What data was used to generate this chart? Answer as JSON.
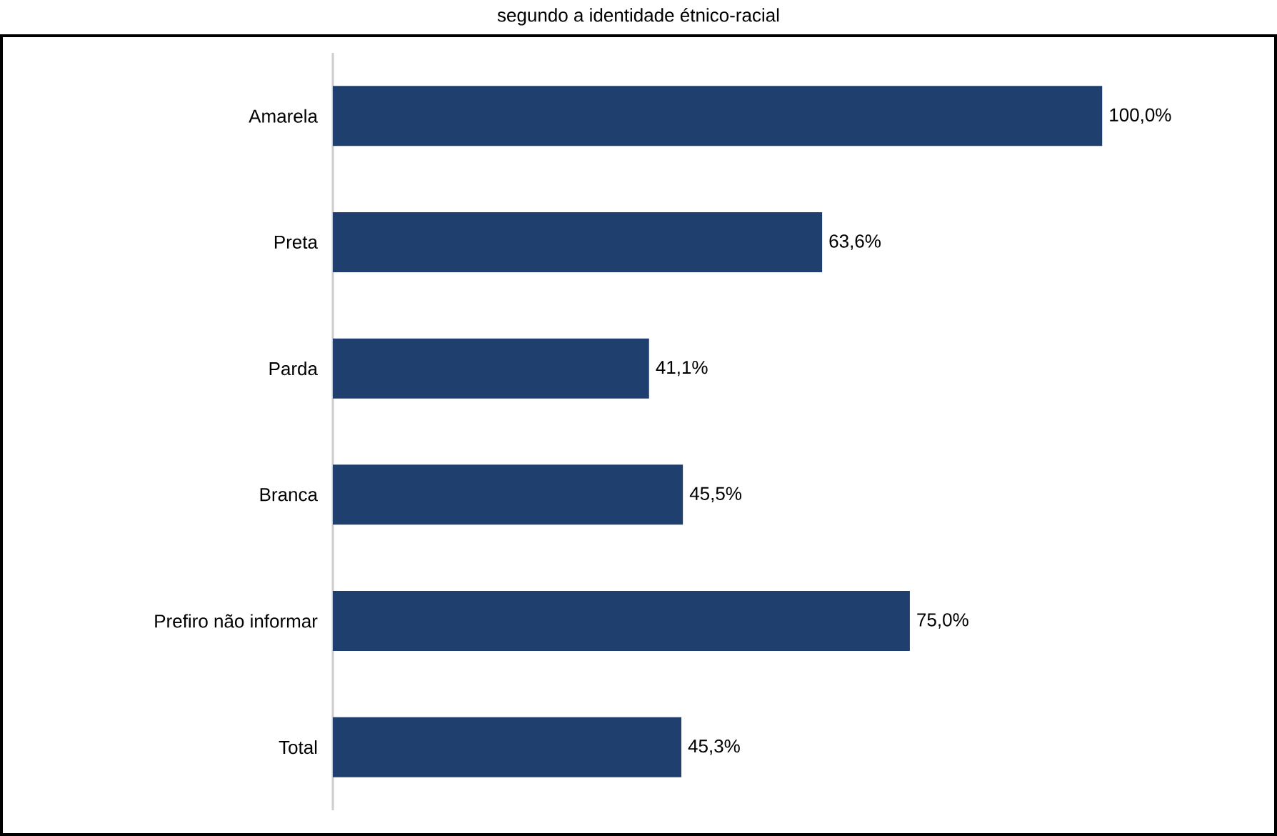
{
  "chart_data": {
    "type": "bar",
    "title": "segundo a identidade étnico-racial",
    "orientation": "horizontal",
    "categories": [
      "Amarela",
      "Preta",
      "Parda",
      "Branca",
      "Prefiro não informar",
      "Total"
    ],
    "values": [
      100.0,
      63.6,
      41.1,
      45.5,
      75.0,
      45.3
    ],
    "value_labels": [
      "100,0%",
      "63,6%",
      "41,1%",
      "45,5%",
      "75,0%",
      "45,3%"
    ],
    "color": "#1f3f6e"
  }
}
